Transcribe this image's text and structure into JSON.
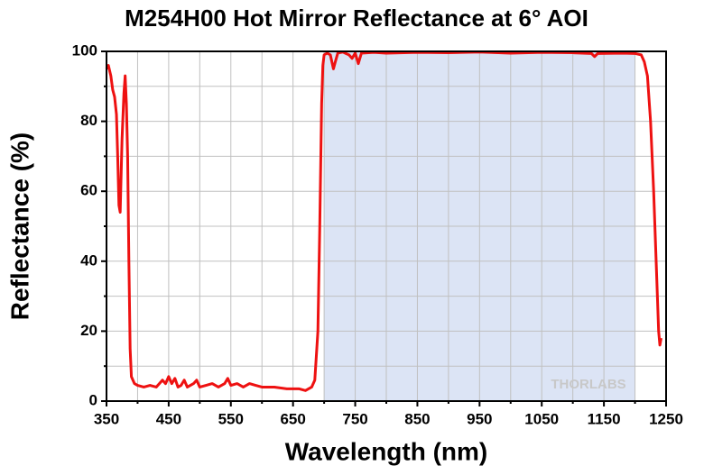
{
  "chart_data": {
    "type": "line",
    "title": "M254H00 Hot Mirror Reflectance at 6° AOI",
    "x_label": "Wavelength (nm)",
    "y_label": "Reflectance (%)",
    "watermark": "THORLABS",
    "xlim": [
      350,
      1250
    ],
    "ylim": [
      0,
      100
    ],
    "xticks": [
      350,
      450,
      550,
      650,
      750,
      850,
      950,
      1050,
      1150,
      1250
    ],
    "x_minor_ticks": [
      400,
      500,
      600,
      700,
      800,
      900,
      1000,
      1100,
      1200
    ],
    "yticks": [
      0,
      20,
      40,
      60,
      80,
      100
    ],
    "y_minor_ticks": [
      10,
      30,
      50,
      70,
      90
    ],
    "grid": true,
    "shaded_region": [
      700,
      1200
    ],
    "shaded_color": "#dce4f5",
    "series": [
      {
        "name": "Reflectance",
        "color": "#ee1111",
        "x": [
          350,
          353,
          357,
          360,
          363,
          366,
          368,
          370,
          372,
          375,
          378,
          380,
          382,
          384,
          386,
          388,
          390,
          395,
          400,
          410,
          420,
          430,
          440,
          445,
          450,
          455,
          460,
          465,
          470,
          475,
          480,
          490,
          495,
          500,
          510,
          520,
          530,
          540,
          545,
          550,
          560,
          570,
          580,
          590,
          600,
          620,
          640,
          660,
          670,
          680,
          685,
          690,
          693,
          696,
          698,
          700,
          705,
          710,
          715,
          718,
          722,
          730,
          740,
          745,
          750,
          755,
          760,
          780,
          800,
          850,
          900,
          950,
          1000,
          1050,
          1100,
          1130,
          1135,
          1140,
          1180,
          1200,
          1210,
          1215,
          1220,
          1225,
          1230,
          1235,
          1238,
          1240,
          1242
        ],
        "values": [
          95,
          96,
          93,
          89,
          87,
          82,
          70,
          56,
          54,
          75,
          88,
          93,
          85,
          70,
          40,
          15,
          7,
          5,
          4.5,
          4,
          4.5,
          4,
          6,
          5,
          7,
          5,
          6.5,
          4,
          4.5,
          6,
          4,
          5,
          6,
          4,
          4.5,
          5,
          4,
          5,
          6.5,
          4.5,
          5,
          4,
          5,
          4.5,
          4,
          4,
          3.5,
          3.5,
          3,
          4,
          6,
          20,
          50,
          85,
          96,
          99,
          99.5,
          99,
          95,
          97,
          99.5,
          99.8,
          99,
          98,
          99.5,
          96.5,
          99.5,
          99.7,
          99.5,
          99.7,
          99.6,
          99.8,
          99.5,
          99.7,
          99.6,
          99.4,
          98.5,
          99.4,
          99.5,
          99.4,
          99,
          97,
          93,
          80,
          60,
          35,
          20,
          16,
          18
        ]
      }
    ]
  }
}
